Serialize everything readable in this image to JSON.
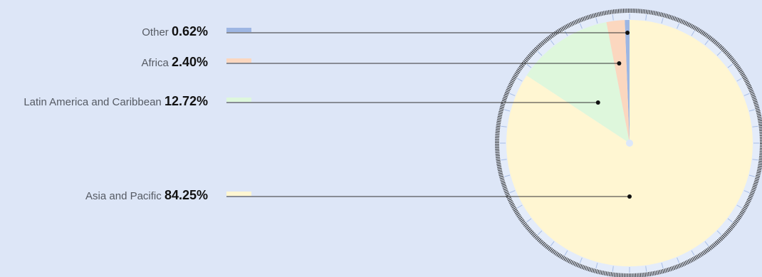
{
  "chart_data": {
    "type": "pie",
    "slices": [
      {
        "label": "Other",
        "percent_label": "0.62%",
        "value": 0.62,
        "color": "#9db6e3"
      },
      {
        "label": "Africa",
        "percent_label": "2.40%",
        "value": 2.4,
        "color": "#fbd7bf"
      },
      {
        "label": "Latin America and Caribbean",
        "percent_label": "12.72%",
        "value": 12.72,
        "color": "#def7dc"
      },
      {
        "label": "Asia and Pacific",
        "percent_label": "84.25%",
        "value": 84.25,
        "color": "#fff6d2"
      }
    ],
    "start_angle_deg": 0,
    "direction": "counterclockwise",
    "legend_position": "left",
    "background": "#dde6f7",
    "rim_color": "#e4ecfa",
    "tick_color": "#a8bde4",
    "outline_color": "#222222"
  }
}
